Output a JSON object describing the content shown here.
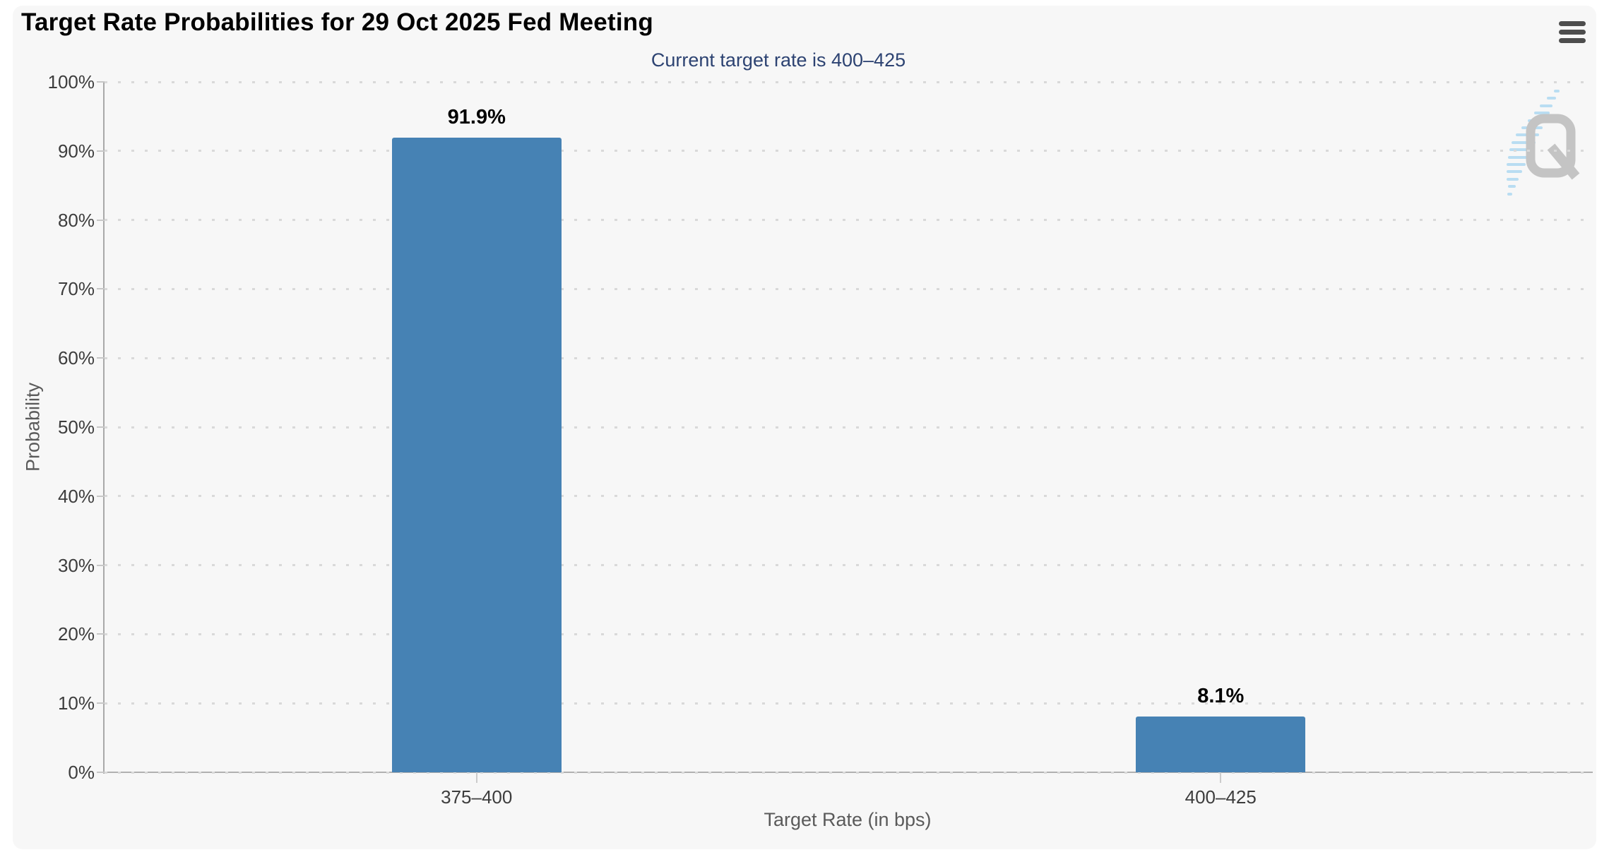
{
  "header": {
    "title": "Target Rate Probabilities for 29 Oct 2025 Fed Meeting",
    "subtitle": "Current target rate is 400–425"
  },
  "watermark": {
    "logo_letter": "Q"
  },
  "chart_data": {
    "type": "bar",
    "title": "Target Rate Probabilities for 29 Oct 2025 Fed Meeting",
    "subtitle": "Current target rate is 400–425",
    "categories": [
      "375–400",
      "400–425"
    ],
    "values": [
      91.9,
      8.1
    ],
    "value_labels": [
      "91.9%",
      "8.1%"
    ],
    "xlabel": "Target Rate (in bps)",
    "ylabel": "Probability",
    "ylim": [
      0,
      100
    ],
    "ytick_step": 10,
    "ytick_labels": [
      "0%",
      "10%",
      "20%",
      "30%",
      "40%",
      "50%",
      "60%",
      "70%",
      "80%",
      "90%",
      "100%"
    ],
    "grid": "dotted-horizontal",
    "legend": "none",
    "bar_color": "#4682b4"
  },
  "colors": {
    "page_background": "#ffffff",
    "card_background": "#f7f7f7",
    "bar": "#4682b4",
    "subtitle_text": "#2d4372",
    "axis_line": "#a9a9a9",
    "grid_dot": "#d9d9d9",
    "tick_label": "#3d3d3d",
    "axis_title": "#5a5a5a",
    "menu_icon": "#4d4d4d",
    "watermark_gray": "#c4c4c4",
    "watermark_blue": "#b9ddf2"
  }
}
